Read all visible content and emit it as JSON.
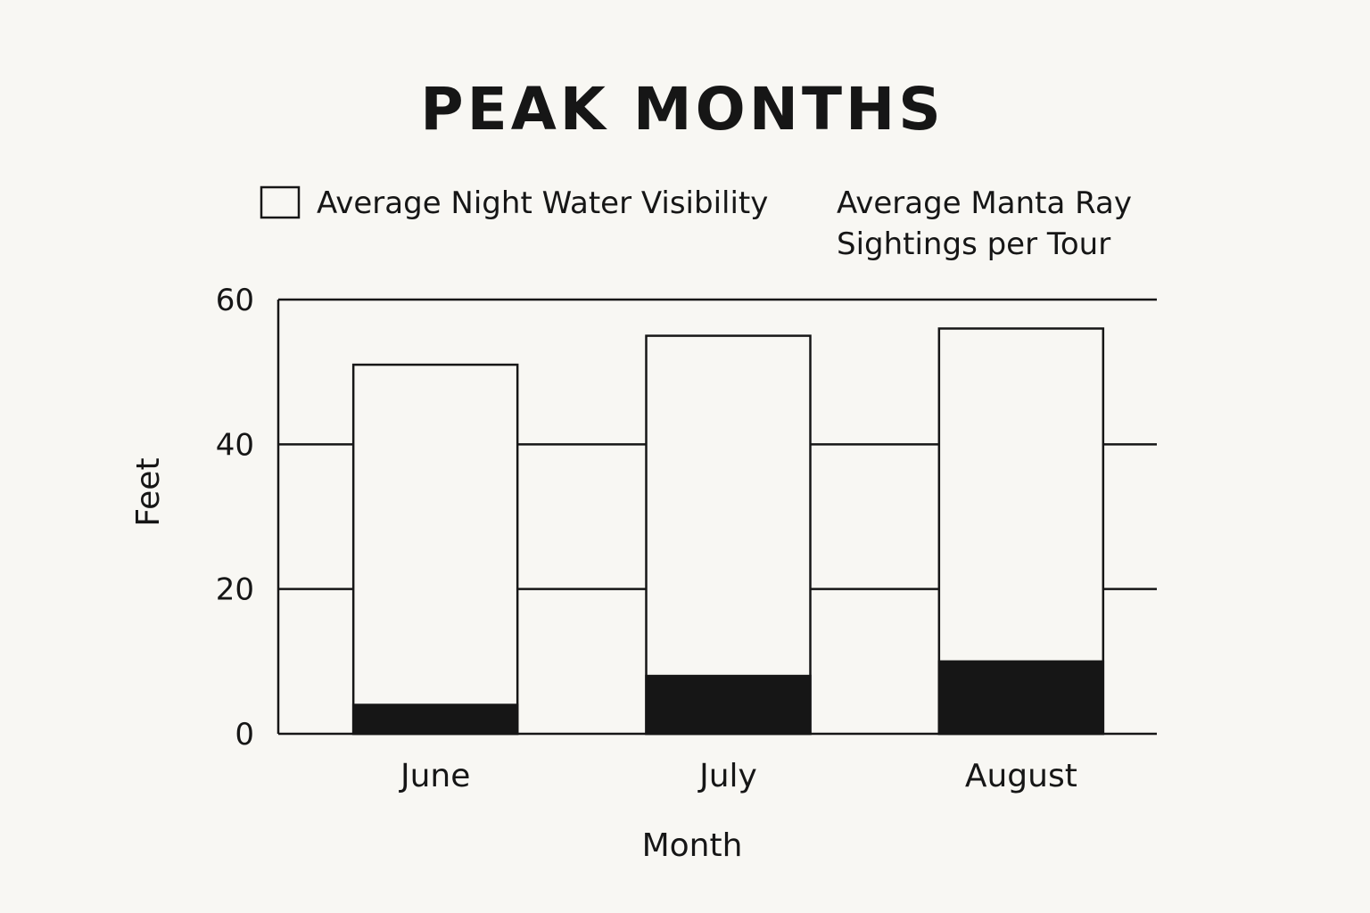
{
  "chart_data": {
    "type": "bar",
    "title": "PEAK MONTHS",
    "xlabel": "Month",
    "ylabel": "Feet",
    "categories": [
      "June",
      "July",
      "August"
    ],
    "ylim": [
      0,
      60
    ],
    "yticks": [
      0,
      20,
      40,
      60
    ],
    "grid": true,
    "legend_position": "top",
    "series": [
      {
        "name": "Average Night Water Visibility",
        "values": [
          51,
          55,
          56
        ],
        "color": "#f8f7f3"
      },
      {
        "name": "Average Manta Ray Sightings per Tour",
        "name_lines": [
          "Average Manta Ray",
          "Sightings per Tour"
        ],
        "values": [
          4,
          8,
          10
        ],
        "color": "#161616"
      }
    ]
  }
}
